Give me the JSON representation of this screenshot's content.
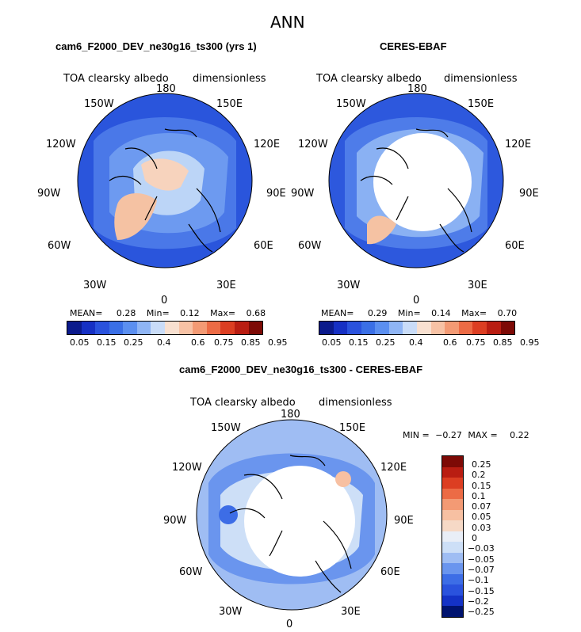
{
  "page": {
    "title": "ANN",
    "bottom_title": "cam6_F2000_DEV_ne30g16_ts300 - CERES-EBAF"
  },
  "colors": {
    "seq_scale": [
      "#0b1a8c",
      "#1630c4",
      "#2a52dd",
      "#3a6fe6",
      "#5b8ff0",
      "#8fb5f5",
      "#c9dcf8",
      "#f8e0d0",
      "#f7c2a5",
      "#f39a74",
      "#ec6b45",
      "#dc3e22",
      "#b91d12",
      "#7d0a06"
    ],
    "diff_scale": [
      "#00136f",
      "#1432c6",
      "#2a52dd",
      "#3d6de6",
      "#6a95ee",
      "#9fbdf3",
      "#cddff7",
      "#e9eef7",
      "#f6d9c6",
      "#f7c0a2",
      "#f39a74",
      "#ec6b45",
      "#dc3e22",
      "#b91d12",
      "#7d0a06"
    ]
  },
  "panel_left": {
    "subtitle": "cam6_F2000_DEV_ne30g16_ts300 (yrs 1)",
    "var_label": "TOA clearsky albedo",
    "units": "dimensionless",
    "lon_labels": [
      "180",
      "150W",
      "150E",
      "120W",
      "120E",
      "90W",
      "90E",
      "60W",
      "60E",
      "30W",
      "30E",
      "0"
    ],
    "stats": {
      "mean_label": "MEAN=",
      "mean": "0.28",
      "min_label": "Min=",
      "min": "0.12",
      "max_label": "Max=",
      "max": "0.68"
    },
    "colorbar_ticks": [
      "0.05",
      "0.15",
      "0.25",
      "0.4",
      "0.6",
      "0.75",
      "0.85",
      "0.95"
    ]
  },
  "panel_right": {
    "subtitle": "CERES-EBAF",
    "var_label": "TOA clearsky albedo",
    "units": "dimensionless",
    "lon_labels": [
      "180",
      "150W",
      "150E",
      "120W",
      "120E",
      "90W",
      "90E",
      "60W",
      "60E",
      "30W",
      "30E",
      "0"
    ],
    "stats": {
      "mean_label": "MEAN=",
      "mean": "0.29",
      "min_label": "Min=",
      "min": "0.14",
      "max_label": "Max=",
      "max": "0.70"
    },
    "colorbar_ticks": [
      "0.05",
      "0.15",
      "0.25",
      "0.4",
      "0.6",
      "0.75",
      "0.85",
      "0.95"
    ]
  },
  "panel_diff": {
    "var_label": "TOA clearsky albedo",
    "units": "dimensionless",
    "lon_labels": [
      "180",
      "150W",
      "150E",
      "120W",
      "120E",
      "90W",
      "90E",
      "60W",
      "60E",
      "30W",
      "30E",
      "0"
    ],
    "stats": {
      "min_label": "MIN =",
      "min": "−0.27",
      "max_label": "MAX =",
      "max": "0.22"
    },
    "colorbar_ticks": [
      "0.25",
      "0.2",
      "0.15",
      "0.1",
      "0.07",
      "0.05",
      "0.03",
      "0",
      "−0.03",
      "−0.05",
      "−0.07",
      "−0.1",
      "−0.15",
      "−0.2",
      "−0.25"
    ]
  }
}
